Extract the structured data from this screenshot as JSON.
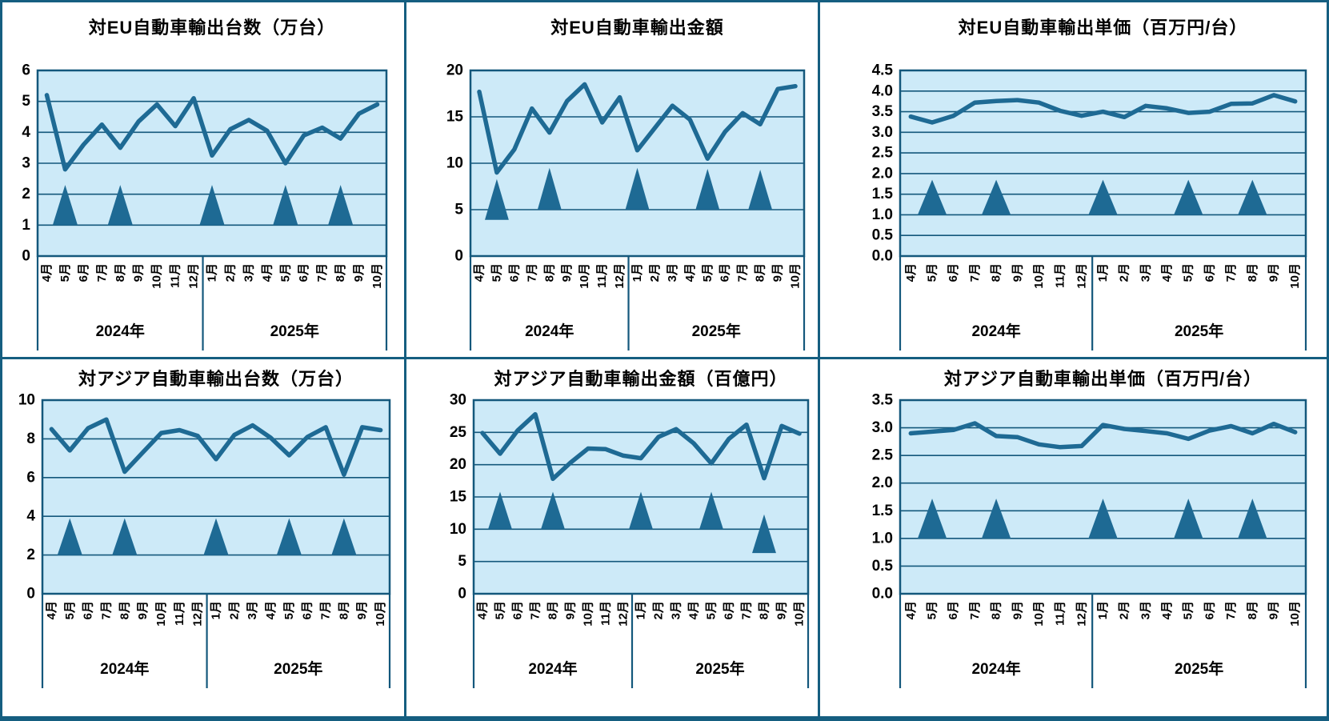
{
  "colors": {
    "line": "#1e6a94",
    "triangle": "#1e6a94",
    "plot_bg": "#cdeaf8",
    "grid": "#14587c",
    "panel_border": "#155e80",
    "text": "#000000"
  },
  "x_axis": {
    "months": [
      "4月",
      "5月",
      "6月",
      "7月",
      "8月",
      "9月",
      "10月",
      "11月",
      "12月",
      "1月",
      "2月",
      "3月",
      "4月",
      "5月",
      "6月",
      "7月",
      "8月",
      "9月",
      "10月"
    ],
    "months_in_2024": 9,
    "year_labels": [
      "2024年",
      "2025年"
    ]
  },
  "chart_data": [
    {
      "type": "line",
      "title": "対EU自動車輸出台数（万台）",
      "ylim": [
        0,
        6
      ],
      "ytick_step": 1,
      "ytick_labels": [
        "0",
        "1",
        "2",
        "3",
        "4",
        "5",
        "6"
      ],
      "values": [
        5.2,
        2.8,
        3.6,
        4.25,
        3.5,
        4.35,
        4.9,
        4.2,
        5.1,
        3.25,
        4.1,
        4.4,
        4.05,
        3.0,
        3.9,
        4.15,
        3.8,
        4.6,
        4.9
      ],
      "triangles": [
        {
          "month_index": 1,
          "base": 1.0,
          "apex": 2.3
        },
        {
          "month_index": 4,
          "base": 1.0,
          "apex": 2.3
        },
        {
          "month_index": 9,
          "base": 1.0,
          "apex": 2.3
        },
        {
          "month_index": 13,
          "base": 1.0,
          "apex": 2.3
        },
        {
          "month_index": 16,
          "base": 1.0,
          "apex": 2.3
        }
      ]
    },
    {
      "type": "line",
      "title": "対EU自動車輸出金額",
      "ylim": [
        0,
        20
      ],
      "ytick_step": 5,
      "ytick_labels": [
        "0",
        "5",
        "10",
        "15",
        "20"
      ],
      "values": [
        17.7,
        9.0,
        11.5,
        15.9,
        13.3,
        16.7,
        18.5,
        14.4,
        17.1,
        11.4,
        13.8,
        16.2,
        14.7,
        10.5,
        13.4,
        15.4,
        14.2,
        18.0,
        18.3
      ],
      "triangles": [
        {
          "month_index": 1,
          "base": 3.9,
          "apex": 8.3
        },
        {
          "month_index": 4,
          "base": 5.0,
          "apex": 9.5
        },
        {
          "month_index": 9,
          "base": 5.0,
          "apex": 9.5
        },
        {
          "month_index": 13,
          "base": 5.0,
          "apex": 9.4
        },
        {
          "month_index": 16,
          "base": 5.0,
          "apex": 9.3
        }
      ]
    },
    {
      "type": "line",
      "title": "対EU自動車輸出単価（百万円/台）",
      "ylim": [
        0,
        4.5
      ],
      "ytick_step": 0.5,
      "ytick_labels": [
        "0.0",
        "0.5",
        "1.0",
        "1.5",
        "2.0",
        "2.5",
        "3.0",
        "3.5",
        "4.0",
        "4.5"
      ],
      "values": [
        3.38,
        3.24,
        3.4,
        3.72,
        3.76,
        3.78,
        3.72,
        3.52,
        3.4,
        3.5,
        3.37,
        3.64,
        3.58,
        3.47,
        3.5,
        3.69,
        3.7,
        3.9,
        3.75
      ],
      "triangles": [
        {
          "month_index": 1,
          "base": 1.0,
          "apex": 1.85
        },
        {
          "month_index": 4,
          "base": 1.0,
          "apex": 1.85
        },
        {
          "month_index": 9,
          "base": 1.0,
          "apex": 1.85
        },
        {
          "month_index": 13,
          "base": 1.0,
          "apex": 1.85
        },
        {
          "month_index": 16,
          "base": 1.0,
          "apex": 1.85
        }
      ]
    },
    {
      "type": "line",
      "title": "対アジア自動車輸出台数（万台）",
      "ylim": [
        0,
        10
      ],
      "ytick_step": 2,
      "ytick_labels": [
        "0",
        "2",
        "4",
        "6",
        "8",
        "10"
      ],
      "values": [
        8.5,
        7.4,
        8.55,
        9.0,
        6.3,
        7.3,
        8.3,
        8.45,
        8.15,
        6.95,
        8.2,
        8.7,
        8.05,
        7.15,
        8.1,
        8.6,
        6.15,
        8.6,
        8.45
      ],
      "triangles": [
        {
          "month_index": 1,
          "base": 2.0,
          "apex": 3.9
        },
        {
          "month_index": 4,
          "base": 2.0,
          "apex": 3.9
        },
        {
          "month_index": 9,
          "base": 2.0,
          "apex": 3.9
        },
        {
          "month_index": 13,
          "base": 2.0,
          "apex": 3.9
        },
        {
          "month_index": 16,
          "base": 2.0,
          "apex": 3.9
        }
      ]
    },
    {
      "type": "line",
      "title": "対アジア自動車輸出金額（百億円）",
      "ylim": [
        0,
        30
      ],
      "ytick_step": 5,
      "ytick_labels": [
        "0",
        "5",
        "10",
        "15",
        "20",
        "25",
        "30"
      ],
      "values": [
        24.9,
        21.7,
        25.3,
        27.8,
        17.8,
        20.3,
        22.5,
        22.4,
        21.4,
        21.0,
        24.3,
        25.5,
        23.3,
        20.2,
        24.0,
        26.2,
        17.9,
        26.0,
        24.8
      ],
      "triangles": [
        {
          "month_index": 1,
          "base": 10.0,
          "apex": 15.8
        },
        {
          "month_index": 4,
          "base": 10.0,
          "apex": 15.8
        },
        {
          "month_index": 9,
          "base": 10.0,
          "apex": 15.8
        },
        {
          "month_index": 13,
          "base": 10.0,
          "apex": 15.8
        },
        {
          "month_index": 16,
          "base": 6.3,
          "apex": 12.3
        }
      ]
    },
    {
      "type": "line",
      "title": "対アジア自動車輸出単価（百万円/台）",
      "ylim": [
        0,
        3.5
      ],
      "ytick_step": 0.5,
      "ytick_labels": [
        "0.0",
        "0.5",
        "1.0",
        "1.5",
        "2.0",
        "2.5",
        "3.0",
        "3.5"
      ],
      "values": [
        2.9,
        2.93,
        2.96,
        3.08,
        2.85,
        2.83,
        2.7,
        2.65,
        2.67,
        3.05,
        2.98,
        2.94,
        2.9,
        2.8,
        2.95,
        3.03,
        2.9,
        3.07,
        2.92
      ],
      "triangles": [
        {
          "month_index": 1,
          "base": 1.0,
          "apex": 1.72
        },
        {
          "month_index": 4,
          "base": 1.0,
          "apex": 1.72
        },
        {
          "month_index": 9,
          "base": 1.0,
          "apex": 1.72
        },
        {
          "month_index": 13,
          "base": 1.0,
          "apex": 1.72
        },
        {
          "month_index": 16,
          "base": 1.0,
          "apex": 1.72
        }
      ]
    }
  ]
}
